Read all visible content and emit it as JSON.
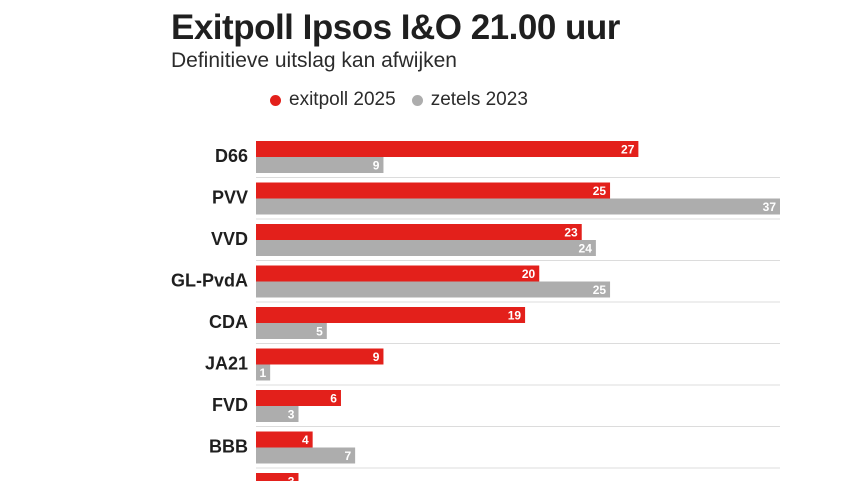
{
  "title": "Exitpoll Ipsos I&O 21.00 uur",
  "subtitle": "Definitieve uitslag kan afwijken",
  "colors": {
    "exitpoll": "#e3201b",
    "zetels": "#adadad",
    "divider": "#dcdcdc"
  },
  "chart_data": {
    "type": "bar",
    "orientation": "horizontal",
    "title": "Exitpoll Ipsos I&O 21.00 uur",
    "subtitle": "Definitieve uitslag kan afwijken",
    "categories": [
      "D66",
      "PVV",
      "VVD",
      "GL-PvdA",
      "CDA",
      "JA21",
      "FVD",
      "BBB",
      ""
    ],
    "series": [
      {
        "name": "exitpoll 2025",
        "color": "#e3201b",
        "values": [
          27,
          25,
          23,
          20,
          19,
          9,
          6,
          4,
          3
        ]
      },
      {
        "name": "zetels 2023",
        "color": "#adadad",
        "values": [
          9,
          37,
          24,
          25,
          5,
          1,
          3,
          7,
          null
        ]
      }
    ],
    "xlim": [
      0,
      37
    ],
    "legend_position": "top",
    "grid": false
  }
}
